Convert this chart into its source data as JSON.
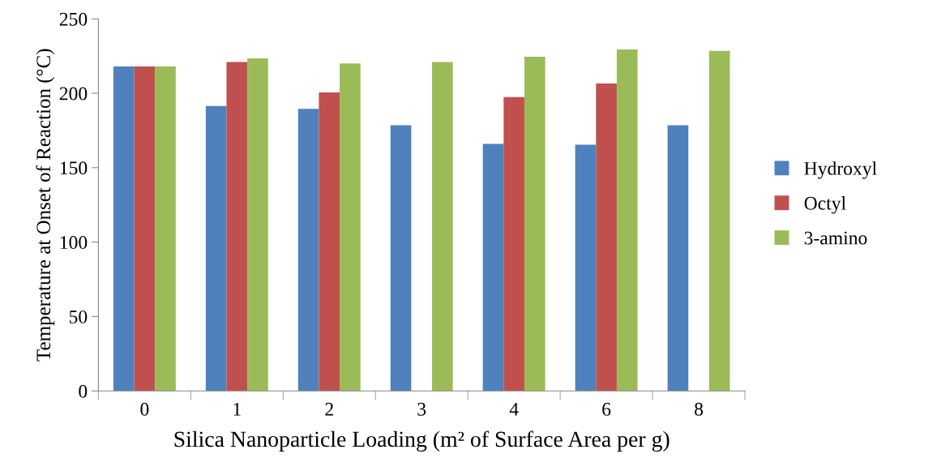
{
  "chart_data": {
    "type": "bar",
    "xlabel": "Silica Nanoparticle Loading (m² of Surface Area per g)",
    "ylabel": "Temperature at Onset of Reaction (°C)",
    "categories": [
      "0",
      "1",
      "2",
      "3",
      "4",
      "6",
      "8"
    ],
    "series": [
      {
        "name": "Hydroxyl",
        "color": "#4f81bd",
        "values": [
          218,
          191.5,
          189.5,
          178.5,
          166,
          165.5,
          178.5
        ]
      },
      {
        "name": "Octyl",
        "color": "#c0504d",
        "values": [
          218,
          221,
          200.5,
          null,
          197.5,
          206.5,
          null
        ]
      },
      {
        "name": "3-amino",
        "color": "#9bbb59",
        "values": [
          218,
          223.5,
          220,
          221,
          224.5,
          229.5,
          228.5
        ]
      }
    ],
    "ylim": [
      0,
      250
    ],
    "yticks": [
      0,
      50,
      100,
      150,
      200,
      250
    ],
    "grid": false,
    "legend": "right"
  }
}
